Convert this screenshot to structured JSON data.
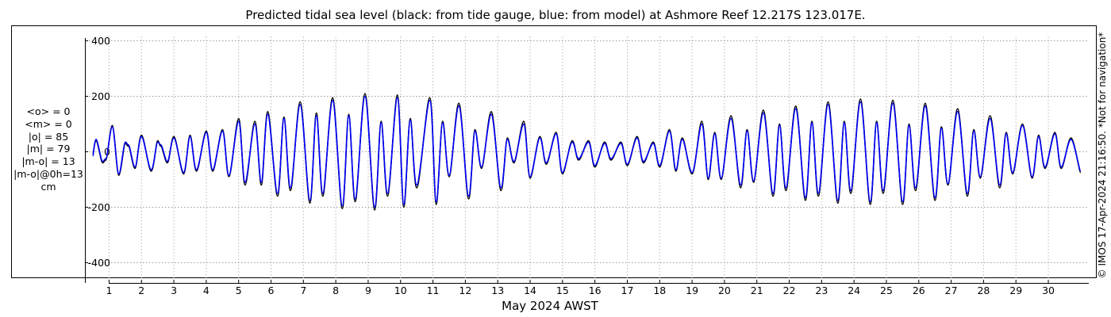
{
  "chart_data": {
    "type": "line",
    "title": "Predicted tidal sea level (black: from tide gauge, blue: from model) at Ashmore Reef 12.217S 123.017E.",
    "xlabel": "May 2024 AWST",
    "ylabel": "",
    "xlim": [
      0.45,
      31.2
    ],
    "ylim": [
      -450,
      450
    ],
    "x_ticks": [
      "1",
      "2",
      "3",
      "4",
      "5",
      "6",
      "7",
      "8",
      "9",
      "10",
      "11",
      "12",
      "13",
      "14",
      "15",
      "16",
      "17",
      "18",
      "19",
      "20",
      "21",
      "22",
      "23",
      "24",
      "25",
      "26",
      "27",
      "28",
      "29",
      "30"
    ],
    "y_ticks": [
      {
        "value": 400,
        "label": "400"
      },
      {
        "value": 200,
        "label": "200"
      },
      {
        "value": 0,
        "label": "0"
      },
      {
        "value": -200,
        "label": "-200"
      },
      {
        "value": -400,
        "label": "-400"
      }
    ],
    "grid": true,
    "series": [
      {
        "key": "gauge",
        "color": "#000000",
        "values": [
          [
            0.5,
            -10
          ],
          [
            0.6,
            40
          ],
          [
            0.8,
            -40
          ],
          [
            0.9,
            -30
          ],
          [
            1.1,
            95
          ],
          [
            1.3,
            -85
          ],
          [
            1.5,
            30
          ],
          [
            1.6,
            20
          ],
          [
            1.8,
            -60
          ],
          [
            2.0,
            60
          ],
          [
            2.3,
            -70
          ],
          [
            2.5,
            40
          ],
          [
            2.6,
            20
          ],
          [
            2.8,
            -40
          ],
          [
            3.0,
            55
          ],
          [
            3.3,
            -80
          ],
          [
            3.5,
            60
          ],
          [
            3.7,
            -70
          ],
          [
            4.0,
            75
          ],
          [
            4.2,
            -70
          ],
          [
            4.5,
            80
          ],
          [
            4.7,
            -90
          ],
          [
            5.0,
            120
          ],
          [
            5.2,
            -120
          ],
          [
            5.5,
            110
          ],
          [
            5.7,
            -120
          ],
          [
            5.9,
            145
          ],
          [
            6.2,
            -160
          ],
          [
            6.4,
            125
          ],
          [
            6.6,
            -140
          ],
          [
            6.9,
            180
          ],
          [
            7.2,
            -185
          ],
          [
            7.4,
            140
          ],
          [
            7.6,
            -160
          ],
          [
            7.9,
            195
          ],
          [
            8.2,
            -205
          ],
          [
            8.4,
            135
          ],
          [
            8.6,
            -180
          ],
          [
            8.9,
            210
          ],
          [
            9.2,
            -210
          ],
          [
            9.4,
            110
          ],
          [
            9.6,
            -160
          ],
          [
            9.9,
            205
          ],
          [
            10.1,
            -200
          ],
          [
            10.3,
            120
          ],
          [
            10.5,
            -130
          ],
          [
            10.9,
            195
          ],
          [
            11.1,
            -190
          ],
          [
            11.3,
            110
          ],
          [
            11.5,
            -90
          ],
          [
            11.8,
            175
          ],
          [
            12.1,
            -170
          ],
          [
            12.3,
            80
          ],
          [
            12.5,
            -60
          ],
          [
            12.8,
            145
          ],
          [
            13.1,
            -140
          ],
          [
            13.3,
            50
          ],
          [
            13.5,
            -40
          ],
          [
            13.8,
            110
          ],
          [
            14.0,
            -95
          ],
          [
            14.3,
            55
          ],
          [
            14.5,
            -45
          ],
          [
            14.8,
            70
          ],
          [
            15.0,
            -80
          ],
          [
            15.3,
            40
          ],
          [
            15.5,
            -30
          ],
          [
            15.8,
            40
          ],
          [
            16.0,
            -55
          ],
          [
            16.3,
            35
          ],
          [
            16.5,
            -30
          ],
          [
            16.8,
            35
          ],
          [
            17.0,
            -50
          ],
          [
            17.3,
            55
          ],
          [
            17.5,
            -40
          ],
          [
            17.8,
            35
          ],
          [
            18.0,
            -55
          ],
          [
            18.3,
            80
          ],
          [
            18.5,
            -70
          ],
          [
            18.7,
            50
          ],
          [
            19.0,
            -80
          ],
          [
            19.3,
            110
          ],
          [
            19.5,
            -100
          ],
          [
            19.7,
            70
          ],
          [
            19.9,
            -100
          ],
          [
            20.2,
            130
          ],
          [
            20.5,
            -130
          ],
          [
            20.7,
            80
          ],
          [
            20.9,
            -110
          ],
          [
            21.2,
            150
          ],
          [
            21.5,
            -160
          ],
          [
            21.7,
            100
          ],
          [
            21.9,
            -140
          ],
          [
            22.2,
            165
          ],
          [
            22.5,
            -175
          ],
          [
            22.7,
            110
          ],
          [
            22.9,
            -160
          ],
          [
            23.2,
            180
          ],
          [
            23.5,
            -185
          ],
          [
            23.7,
            110
          ],
          [
            23.9,
            -150
          ],
          [
            24.2,
            190
          ],
          [
            24.5,
            -190
          ],
          [
            24.7,
            110
          ],
          [
            24.9,
            -150
          ],
          [
            25.2,
            185
          ],
          [
            25.5,
            -190
          ],
          [
            25.7,
            100
          ],
          [
            25.9,
            -140
          ],
          [
            26.2,
            175
          ],
          [
            26.5,
            -175
          ],
          [
            26.7,
            90
          ],
          [
            26.9,
            -120
          ],
          [
            27.2,
            155
          ],
          [
            27.5,
            -160
          ],
          [
            27.7,
            80
          ],
          [
            27.9,
            -95
          ],
          [
            28.2,
            130
          ],
          [
            28.5,
            -130
          ],
          [
            28.7,
            70
          ],
          [
            28.9,
            -80
          ],
          [
            29.2,
            100
          ],
          [
            29.5,
            -95
          ],
          [
            29.7,
            60
          ],
          [
            29.9,
            -60
          ],
          [
            30.2,
            70
          ],
          [
            30.4,
            -60
          ],
          [
            30.7,
            50
          ],
          [
            31.0,
            -75
          ]
        ]
      },
      {
        "key": "model",
        "color": "#0000ff",
        "values": [
          [
            0.5,
            -15
          ],
          [
            0.6,
            45
          ],
          [
            0.8,
            -35
          ],
          [
            0.9,
            -25
          ],
          [
            1.1,
            90
          ],
          [
            1.3,
            -80
          ],
          [
            1.5,
            35
          ],
          [
            1.6,
            25
          ],
          [
            1.8,
            -55
          ],
          [
            2.0,
            55
          ],
          [
            2.3,
            -65
          ],
          [
            2.5,
            35
          ],
          [
            2.6,
            25
          ],
          [
            2.8,
            -35
          ],
          [
            3.0,
            50
          ],
          [
            3.3,
            -75
          ],
          [
            3.5,
            55
          ],
          [
            3.7,
            -65
          ],
          [
            4.0,
            70
          ],
          [
            4.2,
            -65
          ],
          [
            4.5,
            75
          ],
          [
            4.7,
            -85
          ],
          [
            5.0,
            110
          ],
          [
            5.2,
            -110
          ],
          [
            5.5,
            100
          ],
          [
            5.7,
            -110
          ],
          [
            5.9,
            135
          ],
          [
            6.2,
            -150
          ],
          [
            6.4,
            120
          ],
          [
            6.6,
            -130
          ],
          [
            6.9,
            170
          ],
          [
            7.2,
            -175
          ],
          [
            7.4,
            130
          ],
          [
            7.6,
            -150
          ],
          [
            7.9,
            185
          ],
          [
            8.2,
            -195
          ],
          [
            8.4,
            130
          ],
          [
            8.6,
            -170
          ],
          [
            8.9,
            200
          ],
          [
            9.2,
            -200
          ],
          [
            9.4,
            105
          ],
          [
            9.6,
            -150
          ],
          [
            9.9,
            195
          ],
          [
            10.1,
            -190
          ],
          [
            10.3,
            115
          ],
          [
            10.5,
            -120
          ],
          [
            10.9,
            185
          ],
          [
            11.1,
            -180
          ],
          [
            11.3,
            105
          ],
          [
            11.5,
            -85
          ],
          [
            11.8,
            165
          ],
          [
            12.1,
            -160
          ],
          [
            12.3,
            75
          ],
          [
            12.5,
            -55
          ],
          [
            12.8,
            135
          ],
          [
            13.1,
            -130
          ],
          [
            13.3,
            45
          ],
          [
            13.5,
            -35
          ],
          [
            13.8,
            100
          ],
          [
            14.0,
            -90
          ],
          [
            14.3,
            50
          ],
          [
            14.5,
            -40
          ],
          [
            14.8,
            65
          ],
          [
            15.0,
            -75
          ],
          [
            15.3,
            35
          ],
          [
            15.5,
            -25
          ],
          [
            15.8,
            35
          ],
          [
            16.0,
            -50
          ],
          [
            16.3,
            30
          ],
          [
            16.5,
            -25
          ],
          [
            16.8,
            30
          ],
          [
            17.0,
            -45
          ],
          [
            17.3,
            50
          ],
          [
            17.5,
            -35
          ],
          [
            17.8,
            30
          ],
          [
            18.0,
            -50
          ],
          [
            18.3,
            75
          ],
          [
            18.5,
            -65
          ],
          [
            18.7,
            45
          ],
          [
            19.0,
            -75
          ],
          [
            19.3,
            100
          ],
          [
            19.5,
            -95
          ],
          [
            19.7,
            65
          ],
          [
            19.9,
            -95
          ],
          [
            20.2,
            120
          ],
          [
            20.5,
            -120
          ],
          [
            20.7,
            75
          ],
          [
            20.9,
            -105
          ],
          [
            21.2,
            140
          ],
          [
            21.5,
            -150
          ],
          [
            21.7,
            95
          ],
          [
            21.9,
            -130
          ],
          [
            22.2,
            155
          ],
          [
            22.5,
            -165
          ],
          [
            22.7,
            105
          ],
          [
            22.9,
            -150
          ],
          [
            23.2,
            170
          ],
          [
            23.5,
            -175
          ],
          [
            23.7,
            105
          ],
          [
            23.9,
            -140
          ],
          [
            24.2,
            180
          ],
          [
            24.5,
            -180
          ],
          [
            24.7,
            105
          ],
          [
            24.9,
            -140
          ],
          [
            25.2,
            175
          ],
          [
            25.5,
            -180
          ],
          [
            25.7,
            95
          ],
          [
            25.9,
            -130
          ],
          [
            26.2,
            165
          ],
          [
            26.5,
            -165
          ],
          [
            26.7,
            85
          ],
          [
            26.9,
            -115
          ],
          [
            27.2,
            145
          ],
          [
            27.5,
            -150
          ],
          [
            27.7,
            75
          ],
          [
            27.9,
            -90
          ],
          [
            28.2,
            120
          ],
          [
            28.5,
            -120
          ],
          [
            28.7,
            65
          ],
          [
            28.9,
            -75
          ],
          [
            29.2,
            95
          ],
          [
            29.5,
            -90
          ],
          [
            29.7,
            55
          ],
          [
            29.9,
            -55
          ],
          [
            30.2,
            65
          ],
          [
            30.4,
            -55
          ],
          [
            30.7,
            45
          ],
          [
            31.0,
            -70
          ]
        ]
      }
    ]
  },
  "stats": [
    "<o> = 0",
    "<m> = 0",
    "|o| = 85",
    "|m| = 79",
    "|m-o| = 13",
    "|m-o|@0h=13",
    "cm"
  ],
  "credit": "© IMOS 17-Apr-2024 21:16:50. *Not for navigation*"
}
